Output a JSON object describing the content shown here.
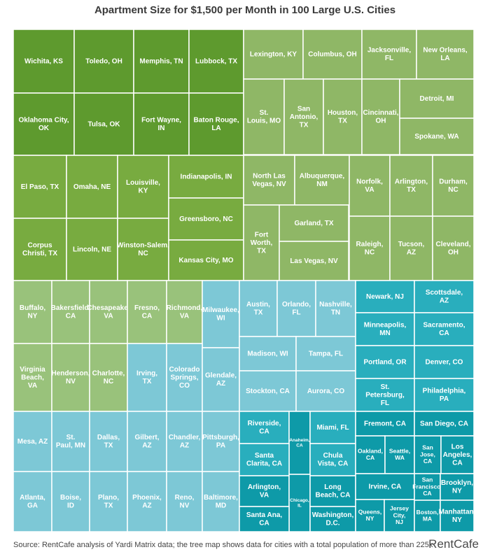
{
  "title": "Apartment Size for $1,500 per Month in 100 Large U.S. Cities",
  "source": "Source: RentCafe analysis of Yardi Matrix data; the tree map shows data for cities with a total population of more than 225k",
  "brand": "RentCafe",
  "colors": {
    "g1": "#5e9a2e",
    "g2": "#78ab40",
    "g3": "#8fb766",
    "g4": "#99c27b",
    "t1": "#7dc8d6",
    "t2": "#29aebd",
    "t3": "#0e9aa8",
    "text": "#ffffff"
  },
  "chart_data": {
    "type": "treemap",
    "title": "Apartment Size for $1,500 per Month in 100 Large U.S. Cities",
    "cities": [
      {
        "name": "Wichita, KS",
        "group": "g1"
      },
      {
        "name": "Toledo, OH",
        "group": "g1"
      },
      {
        "name": "Memphis, TN",
        "group": "g1"
      },
      {
        "name": "Lubbock, TX",
        "group": "g1"
      },
      {
        "name": "Oklahoma City, OK",
        "group": "g1"
      },
      {
        "name": "Tulsa, OK",
        "group": "g1"
      },
      {
        "name": "Fort Wayne, IN",
        "group": "g1"
      },
      {
        "name": "Baton Rouge, LA",
        "group": "g1"
      },
      {
        "name": "Lexington, KY",
        "group": "g3"
      },
      {
        "name": "Columbus, OH",
        "group": "g3"
      },
      {
        "name": "Jacksonville, FL",
        "group": "g3"
      },
      {
        "name": "New Orleans, LA",
        "group": "g3"
      },
      {
        "name": "St. Louis, MO",
        "group": "g3"
      },
      {
        "name": "San Antonio, TX",
        "group": "g3"
      },
      {
        "name": "Houston, TX",
        "group": "g3"
      },
      {
        "name": "Cincinnati, OH",
        "group": "g3"
      },
      {
        "name": "Detroit, MI",
        "group": "g3"
      },
      {
        "name": "Spokane, WA",
        "group": "g3"
      },
      {
        "name": "El Paso, TX",
        "group": "g2"
      },
      {
        "name": "Omaha, NE",
        "group": "g2"
      },
      {
        "name": "Louisville, KY",
        "group": "g2"
      },
      {
        "name": "Indianapolis, IN",
        "group": "g2"
      },
      {
        "name": "Corpus Christi, TX",
        "group": "g2"
      },
      {
        "name": "Lincoln, NE",
        "group": "g2"
      },
      {
        "name": "Winston-Salem, NC",
        "group": "g2"
      },
      {
        "name": "Greensboro, NC",
        "group": "g2"
      },
      {
        "name": "Kansas City, MO",
        "group": "g2"
      },
      {
        "name": "North Las Vegas, NV",
        "group": "g3"
      },
      {
        "name": "Albuquerque, NM",
        "group": "g3"
      },
      {
        "name": "Norfolk, VA",
        "group": "g3"
      },
      {
        "name": "Arlington, TX",
        "group": "g3"
      },
      {
        "name": "Durham, NC",
        "group": "g3"
      },
      {
        "name": "Fort Worth, TX",
        "group": "g3"
      },
      {
        "name": "Garland, TX",
        "group": "g3"
      },
      {
        "name": "Las Vegas, NV",
        "group": "g3"
      },
      {
        "name": "Raleigh, NC",
        "group": "g3"
      },
      {
        "name": "Tucson, AZ",
        "group": "g3"
      },
      {
        "name": "Cleveland, OH",
        "group": "g3"
      },
      {
        "name": "Buffalo, NY",
        "group": "g4"
      },
      {
        "name": "Bakersfield, CA",
        "group": "g4"
      },
      {
        "name": "Chesapeake, VA",
        "group": "g4"
      },
      {
        "name": "Fresno, CA",
        "group": "g4"
      },
      {
        "name": "Richmond, VA",
        "group": "g4"
      },
      {
        "name": "Virginia Beach, VA",
        "group": "g4"
      },
      {
        "name": "Henderson, NV",
        "group": "g4"
      },
      {
        "name": "Charlotte, NC",
        "group": "g4"
      },
      {
        "name": "Milwaukee, WI",
        "group": "t1"
      },
      {
        "name": "Irving, TX",
        "group": "t1"
      },
      {
        "name": "Colorado Springs, CO",
        "group": "t1"
      },
      {
        "name": "Glendale, AZ",
        "group": "t1"
      },
      {
        "name": "Austin, TX",
        "group": "t1"
      },
      {
        "name": "Orlando, FL",
        "group": "t1"
      },
      {
        "name": "Nashville, TN",
        "group": "t1"
      },
      {
        "name": "Madison, WI",
        "group": "t1"
      },
      {
        "name": "Tampa, FL",
        "group": "t1"
      },
      {
        "name": "Stockton, CA",
        "group": "t1"
      },
      {
        "name": "Aurora, CO",
        "group": "t1"
      },
      {
        "name": "Mesa, AZ",
        "group": "t1"
      },
      {
        "name": "St. Paul, MN",
        "group": "t1"
      },
      {
        "name": "Dallas, TX",
        "group": "t1"
      },
      {
        "name": "Gilbert, AZ",
        "group": "t1"
      },
      {
        "name": "Chandler, AZ",
        "group": "t1"
      },
      {
        "name": "Pittsburgh, PA",
        "group": "t1"
      },
      {
        "name": "Atlanta, GA",
        "group": "t1"
      },
      {
        "name": "Boise, ID",
        "group": "t1"
      },
      {
        "name": "Plano, TX",
        "group": "t1"
      },
      {
        "name": "Phoenix, AZ",
        "group": "t1"
      },
      {
        "name": "Reno, NV",
        "group": "t1"
      },
      {
        "name": "Baltimore, MD",
        "group": "t1"
      },
      {
        "name": "Newark, NJ",
        "group": "t2"
      },
      {
        "name": "Scottsdale, AZ",
        "group": "t2"
      },
      {
        "name": "Minneapolis, MN",
        "group": "t2"
      },
      {
        "name": "Sacramento, CA",
        "group": "t2"
      },
      {
        "name": "Portland, OR",
        "group": "t2"
      },
      {
        "name": "Denver, CO",
        "group": "t2"
      },
      {
        "name": "St. Petersburg, FL",
        "group": "t2"
      },
      {
        "name": "Philadelphia, PA",
        "group": "t2"
      },
      {
        "name": "Riverside, CA",
        "group": "t2"
      },
      {
        "name": "Anaheim, CA",
        "group": "t3"
      },
      {
        "name": "Miami, FL",
        "group": "t2"
      },
      {
        "name": "Santa Clarita, CA",
        "group": "t2"
      },
      {
        "name": "Chula Vista, CA",
        "group": "t2"
      },
      {
        "name": "Arlington, VA",
        "group": "t3"
      },
      {
        "name": "Chicago, IL",
        "group": "t3"
      },
      {
        "name": "Long Beach, CA",
        "group": "t3"
      },
      {
        "name": "Santa Ana, CA",
        "group": "t3"
      },
      {
        "name": "Washington, D.C.",
        "group": "t3"
      },
      {
        "name": "Fremont, CA",
        "group": "t3"
      },
      {
        "name": "San Diego, CA",
        "group": "t3"
      },
      {
        "name": "Oakland, CA",
        "group": "t3"
      },
      {
        "name": "Seattle, WA",
        "group": "t3"
      },
      {
        "name": "San Jose, CA",
        "group": "t3"
      },
      {
        "name": "Los Angeles, CA",
        "group": "t3"
      },
      {
        "name": "Irvine, CA",
        "group": "t3"
      },
      {
        "name": "San Francisco, CA",
        "group": "t3"
      },
      {
        "name": "Brooklyn, NY",
        "group": "t3"
      },
      {
        "name": "Queens, NY",
        "group": "t3"
      },
      {
        "name": "Jersey City, NJ",
        "group": "t3"
      },
      {
        "name": "Boston, MA",
        "group": "t3"
      },
      {
        "name": "Manhattan, NY",
        "group": "t3"
      }
    ]
  }
}
